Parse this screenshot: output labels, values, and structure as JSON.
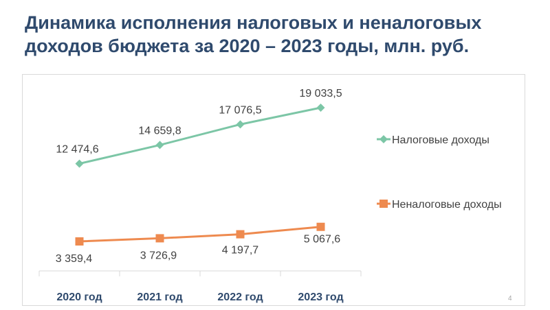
{
  "slide": {
    "title_line1": "Динамика исполнения налоговых и неналоговых",
    "title_line2": "доходов бюджета за 2020 – 2023 годы, млн. руб.",
    "page_number": "4"
  },
  "chart_data": {
    "type": "line",
    "categories": [
      "2020 год",
      "2021 год",
      "2022 год",
      "2023 год"
    ],
    "series": [
      {
        "name": "Налоговые доходы",
        "values": [
          12474.6,
          14659.8,
          17076.5,
          19033.5
        ],
        "labels": [
          "12 474,6",
          "14 659,8",
          "17 076,5",
          "19 033,5"
        ],
        "color": "#7cc6a6",
        "marker": "diamond"
      },
      {
        "name": "Неналоговые доходы",
        "values": [
          3359.4,
          3726.9,
          4197.7,
          5067.6
        ],
        "labels": [
          "3 359,4",
          "3 726,9",
          "4 197,7",
          "5 067,6"
        ],
        "color": "#ee8a4f",
        "marker": "square"
      }
    ],
    "title": "",
    "xlabel": "",
    "ylabel": "",
    "grid": false,
    "legend_position": "right"
  }
}
